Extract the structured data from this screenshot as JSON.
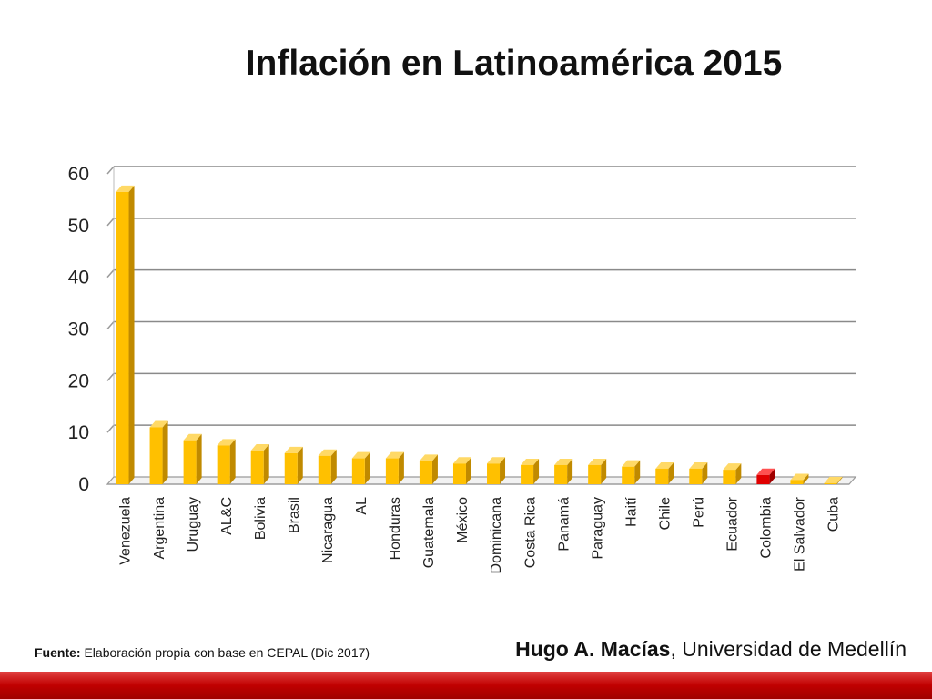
{
  "title": "Inflación en Latinoamérica 2015",
  "source": {
    "label": "Fuente:",
    "text": "Elaboración propia con base en CEPAL (Dic 2017)"
  },
  "author": {
    "name": "Hugo A. Macías",
    "affiliation": ", Universidad de Medellín"
  },
  "colors": {
    "bar": "#FFC000",
    "highlight": "#E00000",
    "footer": "#C00000"
  },
  "chart_data": {
    "type": "bar",
    "title": "Inflación en Latinoamérica 2015",
    "xlabel": "",
    "ylabel": "",
    "ylim": [
      0,
      60
    ],
    "yticks": [
      0,
      10,
      20,
      30,
      40,
      50,
      60
    ],
    "grid": true,
    "legend": "none",
    "highlight_category": "Colombia",
    "categories": [
      "Venezuela",
      "Argentina",
      "Uruguay",
      "AL&C",
      "Bolivia",
      "Brasil",
      "Nicaragua",
      "AL",
      "Honduras",
      "Guatemala",
      "México",
      "Dominicana",
      "Costa Rica",
      "Panamá",
      "Paraguay",
      "Haití",
      "Chile",
      "Perú",
      "Ecuador",
      "Colombia",
      "El Salvador",
      "Cuba"
    ],
    "values": [
      56.5,
      11,
      8.5,
      7.5,
      6.5,
      6,
      5.5,
      5,
      5,
      4.5,
      4,
      4,
      3.7,
      3.7,
      3.7,
      3.4,
      3,
      3,
      2.8,
      1.8,
      0.8,
      0.2
    ]
  }
}
